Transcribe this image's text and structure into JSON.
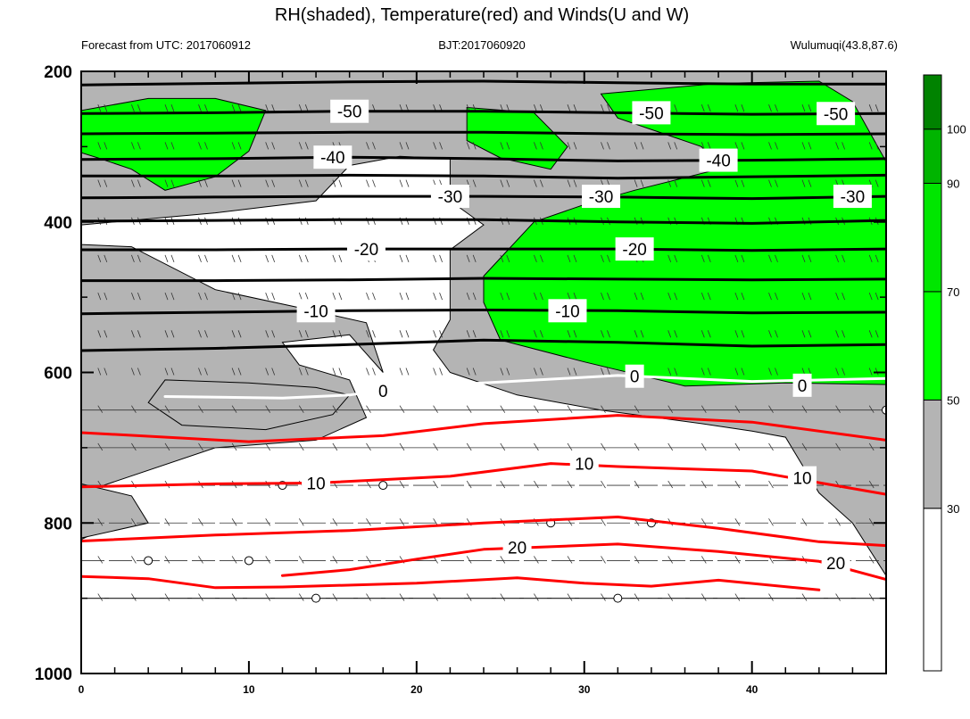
{
  "chart_data": {
    "type": "contour",
    "title": "RH(shaded), Temperature(red) and Winds(U and W)",
    "subtitle_left": "Forecast from UTC: 2017060912",
    "subtitle_center": "BJT:2017060920",
    "subtitle_right": "Wulumuqi(43.8,87.6)",
    "x_ticks": [
      "0",
      "10",
      "20",
      "30",
      "40"
    ],
    "y_ticks": [
      "200",
      "400",
      "600",
      "800",
      "1000"
    ],
    "xlim": [
      0,
      48
    ],
    "ylim": [
      200,
      1000
    ],
    "y_inverted": true,
    "colorbar": {
      "labels": [
        "30",
        "50",
        "70",
        "90",
        "100"
      ],
      "levels": [
        0,
        30,
        50,
        70,
        90,
        100,
        110
      ],
      "colors": [
        "#ffffff",
        "#b4b4b4",
        "#00ff00",
        "#00e600",
        "#00b400",
        "#008200"
      ]
    },
    "temperature_contours": [
      {
        "level": -60,
        "color": "#000000",
        "points": [
          [
            0,
            218
          ],
          [
            8,
            216
          ],
          [
            16,
            214
          ],
          [
            24,
            213
          ],
          [
            32,
            215
          ],
          [
            40,
            217
          ],
          [
            48,
            217
          ]
        ]
      },
      {
        "level": -50,
        "color": "#000000",
        "points": [
          [
            0,
            256
          ],
          [
            8,
            255
          ],
          [
            16,
            253
          ],
          [
            24,
            253
          ],
          [
            32,
            255
          ],
          [
            40,
            257
          ],
          [
            48,
            256
          ]
        ],
        "labels": [
          [
            16,
            253
          ],
          [
            34,
            255
          ],
          [
            45,
            256
          ]
        ]
      },
      {
        "level": -45,
        "color": "#000000",
        "points": [
          [
            0,
            283
          ],
          [
            8,
            282
          ],
          [
            16,
            281
          ],
          [
            24,
            281
          ],
          [
            32,
            283
          ],
          [
            40,
            284
          ],
          [
            48,
            283
          ]
        ]
      },
      {
        "level": -40,
        "color": "#000000",
        "points": [
          [
            0,
            317
          ],
          [
            8,
            316
          ],
          [
            16,
            314
          ],
          [
            24,
            316
          ],
          [
            32,
            319
          ],
          [
            40,
            318
          ],
          [
            48,
            316
          ]
        ],
        "labels": [
          [
            15,
            314
          ],
          [
            38,
            318
          ]
        ]
      },
      {
        "level": -35,
        "color": "#000000",
        "points": [
          [
            0,
            339
          ],
          [
            8,
            339
          ],
          [
            16,
            338
          ],
          [
            24,
            339
          ],
          [
            32,
            342
          ],
          [
            40,
            340
          ],
          [
            48,
            338
          ]
        ]
      },
      {
        "level": -30,
        "color": "#000000",
        "points": [
          [
            0,
            368
          ],
          [
            8,
            367
          ],
          [
            16,
            366
          ],
          [
            24,
            366
          ],
          [
            32,
            367
          ],
          [
            40,
            369
          ],
          [
            48,
            366
          ]
        ],
        "labels": [
          [
            22,
            366
          ],
          [
            31,
            366
          ],
          [
            46,
            366
          ]
        ]
      },
      {
        "level": -25,
        "color": "#000000",
        "points": [
          [
            0,
            399
          ],
          [
            8,
            398
          ],
          [
            16,
            397
          ],
          [
            24,
            397
          ],
          [
            32,
            400
          ],
          [
            40,
            402
          ],
          [
            48,
            398
          ]
        ]
      },
      {
        "level": -20,
        "color": "#000000",
        "points": [
          [
            0,
            437
          ],
          [
            8,
            437
          ],
          [
            16,
            436
          ],
          [
            24,
            436
          ],
          [
            32,
            436
          ],
          [
            40,
            438
          ],
          [
            48,
            436
          ]
        ],
        "labels": [
          [
            17,
            436
          ],
          [
            33,
            436
          ]
        ]
      },
      {
        "level": -15,
        "color": "#000000",
        "points": [
          [
            0,
            478
          ],
          [
            8,
            478
          ],
          [
            16,
            477
          ],
          [
            24,
            475
          ],
          [
            32,
            476
          ],
          [
            40,
            477
          ],
          [
            48,
            476
          ]
        ]
      },
      {
        "level": -10,
        "color": "#000000",
        "points": [
          [
            0,
            522
          ],
          [
            8,
            520
          ],
          [
            16,
            518
          ],
          [
            24,
            517
          ],
          [
            32,
            518
          ],
          [
            40,
            521
          ],
          [
            48,
            520
          ]
        ],
        "labels": [
          [
            14,
            518
          ],
          [
            29,
            518
          ]
        ]
      },
      {
        "level": -5,
        "color": "#000000",
        "points": [
          [
            0,
            571
          ],
          [
            8,
            568
          ],
          [
            16,
            563
          ],
          [
            24,
            557
          ],
          [
            32,
            560
          ],
          [
            40,
            565
          ],
          [
            48,
            563
          ]
        ]
      },
      {
        "level": 0,
        "color": "#ffffff",
        "points": [
          [
            5,
            632
          ],
          [
            12,
            634
          ],
          [
            16,
            630
          ],
          [
            19,
            620
          ],
          [
            24,
            614
          ],
          [
            32,
            604
          ],
          [
            40,
            612
          ],
          [
            48,
            608
          ]
        ],
        "labels": [
          [
            18,
            624
          ],
          [
            33,
            605
          ],
          [
            43,
            617
          ]
        ]
      },
      {
        "level": 5,
        "color": "#ff0000",
        "points": [
          [
            0,
            680
          ],
          [
            10,
            692
          ],
          [
            18,
            684
          ],
          [
            24,
            668
          ],
          [
            32,
            657
          ],
          [
            40,
            666
          ],
          [
            48,
            690
          ]
        ]
      },
      {
        "level": 10,
        "color": "#ff0000",
        "points": [
          [
            0,
            752
          ],
          [
            8,
            748
          ],
          [
            14,
            747
          ],
          [
            22,
            738
          ],
          [
            28,
            721
          ],
          [
            32,
            725
          ],
          [
            40,
            731
          ],
          [
            48,
            762
          ]
        ],
        "labels": [
          [
            14,
            747
          ],
          [
            30,
            721
          ],
          [
            43,
            740
          ]
        ]
      },
      {
        "level": 15,
        "color": "#ff0000",
        "points": [
          [
            0,
            824
          ],
          [
            8,
            816
          ],
          [
            16,
            810
          ],
          [
            24,
            800
          ],
          [
            32,
            792
          ],
          [
            38,
            807
          ],
          [
            44,
            825
          ],
          [
            48,
            830
          ]
        ]
      },
      {
        "level": 20,
        "color": "#ff0000",
        "points": [
          [
            12,
            870
          ],
          [
            16,
            862
          ],
          [
            20,
            848
          ],
          [
            24,
            835
          ],
          [
            32,
            828
          ],
          [
            38,
            838
          ],
          [
            44,
            851
          ],
          [
            48,
            875
          ]
        ],
        "labels": [
          [
            26,
            832
          ],
          [
            45,
            853
          ]
        ]
      },
      {
        "level": 25,
        "color": "#ff0000",
        "points": [
          [
            0,
            871
          ],
          [
            4,
            874
          ],
          [
            8,
            886
          ],
          [
            12,
            885
          ],
          [
            20,
            880
          ],
          [
            26,
            873
          ],
          [
            30,
            880
          ],
          [
            34,
            884
          ],
          [
            38,
            876
          ],
          [
            44,
            889
          ]
        ]
      }
    ],
    "wind_levels_hPa": [
      250,
      300,
      350,
      400,
      450,
      500,
      550,
      600,
      650,
      700,
      750,
      800,
      850,
      900
    ],
    "x_minor_ticks": [
      2,
      4,
      6,
      8,
      12,
      14,
      16,
      18,
      22,
      24,
      26,
      28,
      32,
      34,
      36,
      38,
      42,
      44,
      46,
      48
    ],
    "y_minor_ticks": [
      300,
      500,
      700,
      900
    ],
    "rh_regions": [
      {
        "level": 30,
        "color": "#b4b4b4",
        "points": [
          [
            0,
            200
          ],
          [
            48,
            200
          ],
          [
            48,
            900
          ],
          [
            0,
            900
          ]
        ]
      },
      {
        "level": 0,
        "color": "#ffffff",
        "points": [
          [
            16,
            325
          ],
          [
            19,
            313
          ],
          [
            22,
            316
          ],
          [
            22,
            372
          ],
          [
            24,
            404
          ],
          [
            22,
            437
          ],
          [
            22,
            530
          ],
          [
            21,
            570
          ],
          [
            22,
            600
          ],
          [
            26,
            630
          ],
          [
            31,
            650
          ],
          [
            37,
            668
          ],
          [
            40,
            678
          ],
          [
            42,
            686
          ],
          [
            44,
            760
          ],
          [
            46,
            800
          ],
          [
            48,
            870
          ],
          [
            48,
            900
          ],
          [
            0,
            900
          ],
          [
            0,
            822
          ],
          [
            3,
            790
          ],
          [
            0,
            760
          ],
          [
            8,
            700
          ],
          [
            14,
            690
          ],
          [
            17,
            660
          ],
          [
            16,
            610
          ],
          [
            13,
            590
          ],
          [
            12,
            560
          ],
          [
            16,
            550
          ],
          [
            18,
            600
          ],
          [
            17,
            534
          ],
          [
            13,
            514
          ],
          [
            8,
            490
          ],
          [
            3,
            433
          ],
          [
            0,
            430
          ],
          [
            0,
            404
          ],
          [
            8,
            388
          ],
          [
            14,
            372
          ]
        ]
      },
      {
        "level": 30,
        "color": "#b4b4b4",
        "points": [
          [
            0,
            748
          ],
          [
            3,
            764
          ],
          [
            4,
            800
          ],
          [
            0,
            820
          ]
        ]
      },
      {
        "level": 30,
        "color": "#b4b4b4",
        "points": [
          [
            5,
            610
          ],
          [
            10,
            614
          ],
          [
            14,
            620
          ],
          [
            16,
            630
          ],
          [
            15,
            656
          ],
          [
            11,
            676
          ],
          [
            6,
            670
          ],
          [
            4,
            640
          ]
        ]
      },
      {
        "level": 50,
        "color": "#00ff00",
        "points": [
          [
            0,
            252
          ],
          [
            4,
            236
          ],
          [
            8,
            236
          ],
          [
            11,
            252
          ],
          [
            10,
            306
          ],
          [
            8,
            340
          ],
          [
            5,
            358
          ],
          [
            3,
            330
          ],
          [
            1,
            315
          ],
          [
            0,
            308
          ]
        ]
      },
      {
        "level": 50,
        "color": "#00ff00",
        "points": [
          [
            23,
            248
          ],
          [
            27,
            255
          ],
          [
            29,
            300
          ],
          [
            28,
            330
          ],
          [
            25,
            315
          ],
          [
            23,
            292
          ]
        ]
      },
      {
        "level": 50,
        "color": "#00ff00",
        "points": [
          [
            31,
            230
          ],
          [
            38,
            216
          ],
          [
            44,
            213
          ],
          [
            46,
            240
          ],
          [
            48,
            320
          ],
          [
            48,
            616
          ],
          [
            42,
            614
          ],
          [
            36,
            618
          ],
          [
            30,
            586
          ],
          [
            25,
            557
          ],
          [
            24,
            507
          ],
          [
            24,
            472
          ],
          [
            27,
            400
          ],
          [
            30,
            377
          ],
          [
            33,
            358
          ],
          [
            38,
            330
          ],
          [
            37,
            300
          ],
          [
            32,
            262
          ]
        ]
      }
    ]
  }
}
